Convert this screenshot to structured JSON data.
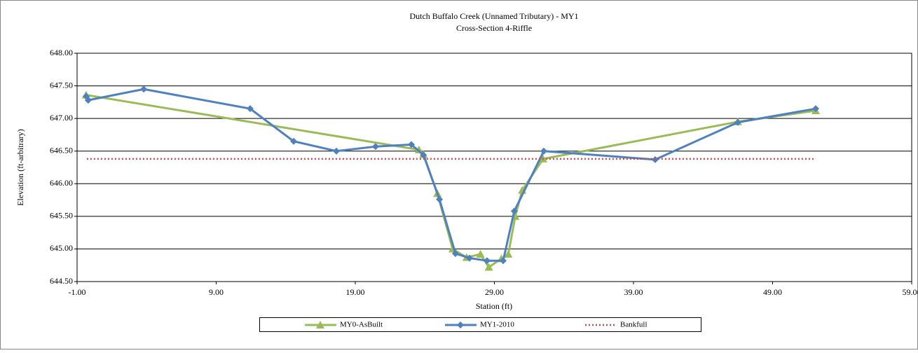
{
  "chart_data": {
    "type": "line",
    "title": "Dutch Buffalo Creek (Unnamed Tributary) - MY1",
    "subtitle": "Cross-Section 4-Riffle",
    "x_label": "Station (ft)",
    "y_label": "Elevation (ft-arbitrary)",
    "xlim": [
      -1,
      59
    ],
    "xticks": [
      {
        "value": -1,
        "label": "-1.00"
      },
      {
        "value": 9,
        "label": "9.00"
      },
      {
        "value": 19,
        "label": "19.00"
      },
      {
        "value": 29,
        "label": "29.00"
      },
      {
        "value": 39,
        "label": "39.00"
      },
      {
        "value": 49,
        "label": "49.00"
      },
      {
        "value": 59,
        "label": "59.00"
      }
    ],
    "ylim": [
      644.5,
      648
    ],
    "yticks": [
      {
        "value": 644.5,
        "label": "644.50"
      },
      {
        "value": 645,
        "label": "645.00"
      },
      {
        "value": 645.5,
        "label": "645.50"
      },
      {
        "value": 646,
        "label": "646.00"
      },
      {
        "value": 646.5,
        "label": "646.50"
      },
      {
        "value": 647,
        "label": "647.00"
      },
      {
        "value": 647.5,
        "label": "647.50"
      },
      {
        "value": 648,
        "label": "648.00"
      }
    ],
    "grid": true,
    "legend": "bottom",
    "series": [
      {
        "name": "MY0-AsBuilt",
        "color": "#9bbb59",
        "marker": "triangle",
        "x": [
          -0.35,
          23.58,
          23.9,
          24.9,
          26.0,
          27.0,
          28.0,
          28.6,
          29.5,
          30.0,
          30.5,
          31.0,
          32.5,
          46.5,
          52.1
        ],
        "values": [
          647.36,
          646.52,
          646.45,
          645.85,
          645.0,
          644.87,
          644.92,
          644.72,
          644.85,
          644.92,
          645.5,
          645.9,
          646.38,
          646.95,
          647.12
        ]
      },
      {
        "name": "MY1-2010",
        "color": "#4f81bd",
        "marker": "diamond",
        "x": [
          -0.35,
          -0.2,
          3.79,
          11.44,
          14.57,
          17.64,
          20.46,
          23.03,
          23.9,
          25.05,
          26.2,
          27.21,
          28.47,
          29.63,
          30.43,
          32.55,
          40.56,
          46.5,
          52.1
        ],
        "values": [
          647.34,
          647.28,
          647.45,
          647.15,
          646.65,
          646.5,
          646.57,
          646.6,
          646.44,
          645.76,
          644.93,
          644.86,
          644.82,
          644.82,
          645.58,
          646.5,
          646.37,
          646.94,
          647.15
        ]
      },
      {
        "name": "Bankfull",
        "color": "#c0504d",
        "marker": "none",
        "dash": "dotted",
        "x": [
          -0.3,
          52.1
        ],
        "values": [
          646.38,
          646.38
        ]
      }
    ]
  }
}
